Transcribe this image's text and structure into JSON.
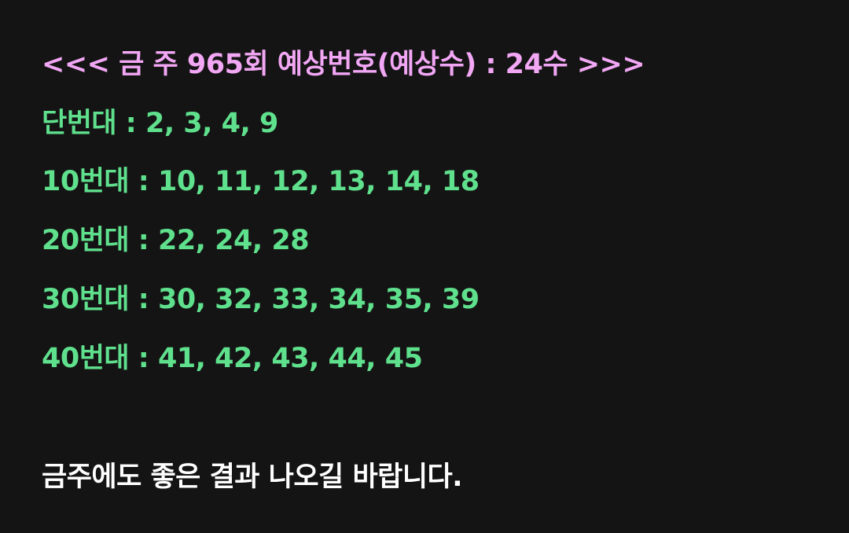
{
  "post": {
    "title": "<<< 금 주 965회 예상번호(예상수) : 24수 >>>",
    "ranges": [
      "단번대 : 2, 3, 4, 9",
      "10번대 : 10, 11, 12, 13, 14, 18",
      "20번대 : 22, 24, 28",
      "30번대 : 30, 32, 33, 34, 35, 39",
      "40번대 : 41, 42, 43, 44, 45"
    ],
    "closing": "금주에도 좋은 결과 나오길 바랍니다."
  },
  "colors": {
    "background": "#141414",
    "title": "#f2a7f5",
    "numbers": "#5fe08d",
    "closing": "#ffffff"
  }
}
